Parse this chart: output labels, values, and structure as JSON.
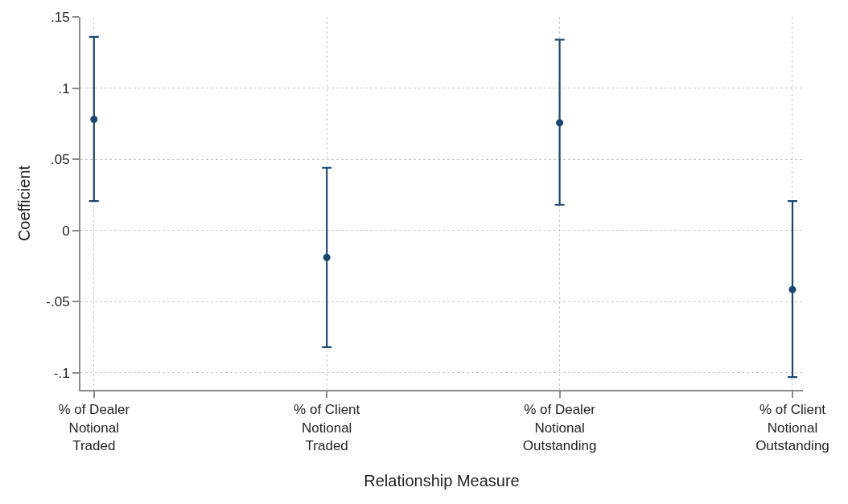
{
  "chart_data": {
    "type": "scatter",
    "xlabel": "Relationship Measure",
    "ylabel": "Coefficient",
    "categories": [
      "% of Dealer\nNotional\nTraded",
      "% of Client\nNotional\nTraded",
      "% of Dealer\nNotional\nOutstanding",
      "% of Client\nNotional\nOutstanding"
    ],
    "series": [
      {
        "color": "#1a476f",
        "values": [
          0.078,
          -0.019,
          0.0756,
          -0.0415
        ],
        "errors": [
          [
            0.0206,
            0.136
          ],
          [
            -0.082,
            0.044
          ],
          [
            0.018,
            0.134
          ],
          [
            -0.103,
            0.0206
          ]
        ]
      }
    ],
    "ylim": [
      -0.112,
      0.15
    ],
    "yticks": [
      {
        "value": -0.1,
        "label": "-.1"
      },
      {
        "value": -0.05,
        "label": "-.05"
      },
      0,
      {
        "value": 0.05,
        "label": ".05"
      },
      {
        "value": 0.1,
        "label": ".1"
      },
      {
        "value": 0.15,
        "label": ".15"
      }
    ],
    "grid": true,
    "marker": "circle"
  }
}
